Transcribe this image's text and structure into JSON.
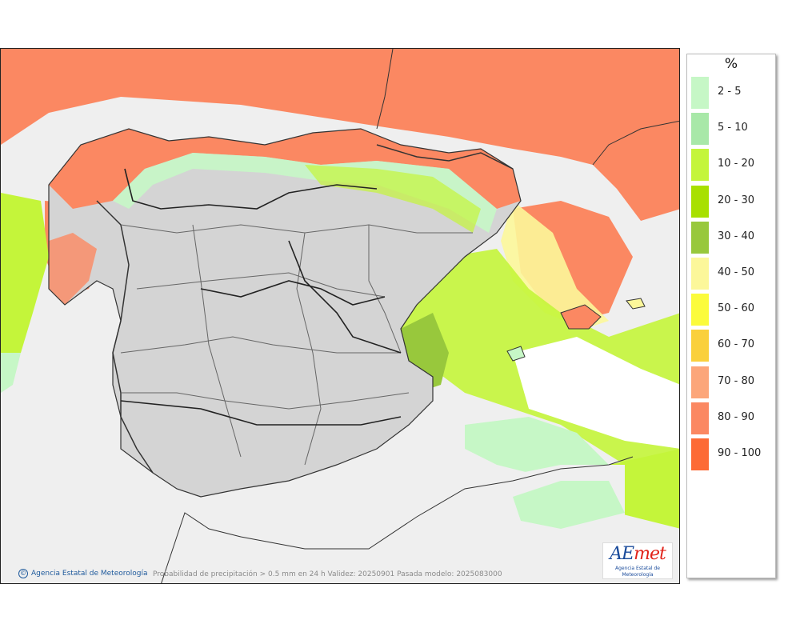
{
  "legend": {
    "unit": "%",
    "items": [
      {
        "label": "2 - 5",
        "color": "#c6f7c6"
      },
      {
        "label": "5 - 10",
        "color": "#a8e8a8"
      },
      {
        "label": "10 - 20",
        "color": "#c4f53a"
      },
      {
        "label": "20 - 30",
        "color": "#a8e000"
      },
      {
        "label": "30 - 40",
        "color": "#98c83c"
      },
      {
        "label": "40 - 50",
        "color": "#fcf79a"
      },
      {
        "label": "50 - 60",
        "color": "#fbfb3c"
      },
      {
        "label": "60 - 70",
        "color": "#fad03c"
      },
      {
        "label": "70 - 80",
        "color": "#fca67a"
      },
      {
        "label": "80 - 90",
        "color": "#fb8862"
      },
      {
        "label": "90 - 100",
        "color": "#fd6a35"
      }
    ]
  },
  "map": {
    "credit": "Agencia Estatal de Meteorología",
    "caption": "Probabilidad de precipitación > 0.5 mm en 24 h Validez: 20250901 Pasada modelo: 2025083000",
    "logo": {
      "brand_ae": "AE",
      "brand_met": "met",
      "subtitle": "Agencia Estatal de Meteorología"
    },
    "colors": {
      "land": "#d4d4d4",
      "sea": "#efefef",
      "border": "#333333"
    }
  }
}
